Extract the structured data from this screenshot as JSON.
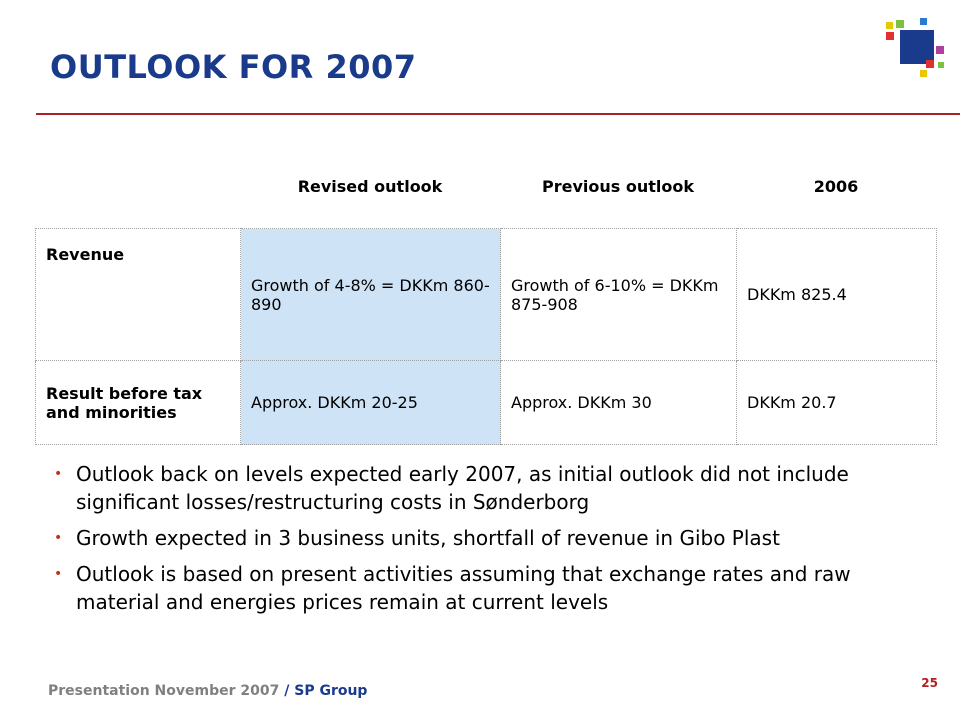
{
  "slide": {
    "title": "OUTLOOK FOR 2007",
    "page_number": "25"
  },
  "table": {
    "headers": [
      "Revised outlook",
      "Previous outlook",
      "2006"
    ],
    "rows": [
      {
        "label": "Revenue",
        "revised": "Growth of 4-8% = DKKm 860-890",
        "previous": "Growth of 6-10% = DKKm 875-908",
        "y2006": "DKKm 825.4"
      },
      {
        "label": "Result before tax and minorities",
        "revised": "Approx. DKKm 20-25",
        "previous": "Approx. DKKm 30",
        "y2006": "DKKm 20.7"
      }
    ]
  },
  "bullets": [
    "Outlook back on levels expected early 2007, as initial outlook did not include significant losses/restructuring costs in Sønderborg",
    "Growth expected in 3 business units, shortfall of revenue in Gibo Plast",
    "Outlook is based on present activities assuming that exchange rates and raw material and energies prices remain at current levels"
  ],
  "footer": {
    "text": "Presentation November 2007",
    "separator": "/",
    "brand": "SP Group"
  },
  "colors": {
    "title": "#1a3a8c",
    "rule": "#b02020",
    "highlight_column": "#cfe3f7"
  }
}
